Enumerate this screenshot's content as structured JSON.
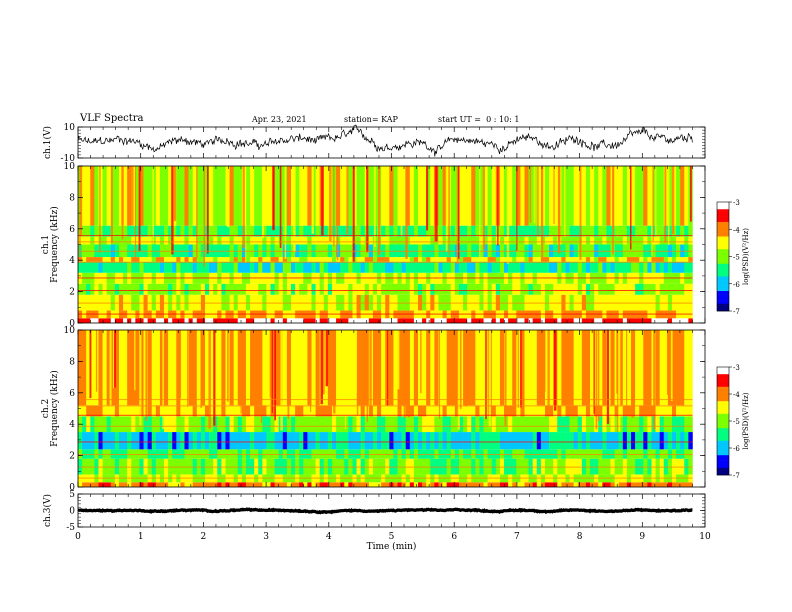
{
  "header": {
    "title": "VLF Spectra",
    "date": "Apr. 23, 2021",
    "station": "station= KAP",
    "start_ut": "start UT =  0 : 10: 1"
  },
  "chart_data": [
    {
      "type": "line",
      "id": "ch1-waveform",
      "ylabel": "ch.1(V)",
      "ylim": [
        -10,
        10
      ],
      "ytick_labels": [
        "10",
        "-10"
      ],
      "xlim": [
        0,
        10
      ],
      "x_end": 9.8,
      "series": [
        {
          "color": "#000000",
          "level": 0,
          "amplitude": 7
        }
      ]
    },
    {
      "type": "heatmap",
      "id": "ch1-spectrogram",
      "ylabel": "ch.1\nFrequency (kHz)",
      "ylim": [
        0,
        10
      ],
      "ytick_labels": [
        "0",
        "2",
        "4",
        "6",
        "8",
        "10"
      ],
      "xlim": [
        0,
        10
      ],
      "x_end": 9.8,
      "colorbar": {
        "label": "log(PSD)(V²/Hz)",
        "range": [
          -7,
          -3
        ],
        "tick_labels": [
          "-3",
          "-4",
          "-5",
          "-6",
          "-7"
        ]
      },
      "colormap": [
        "#000080",
        "#0000ff",
        "#00c8ff",
        "#00ff80",
        "#7cff00",
        "#ffff00",
        "#ff8000",
        "#ff0000",
        "#ffffff"
      ],
      "bands_khz": [
        {
          "from": 0,
          "to": 0.3,
          "log_psd": -3.3
        },
        {
          "from": 0.3,
          "to": 0.8,
          "log_psd": -4.2
        },
        {
          "from": 0.8,
          "to": 1.8,
          "log_psd": -4.6
        },
        {
          "from": 1.8,
          "to": 2.5,
          "log_psd": -4.9
        },
        {
          "from": 2.5,
          "to": 3.2,
          "log_psd": -4.7
        },
        {
          "from": 3.2,
          "to": 3.9,
          "log_psd": -5.6
        },
        {
          "from": 3.9,
          "to": 4.2,
          "log_psd": -4.5
        },
        {
          "from": 4.2,
          "to": 5.0,
          "log_psd": -5.4
        },
        {
          "from": 5.0,
          "to": 5.5,
          "log_psd": -4.8
        },
        {
          "from": 5.5,
          "to": 6.2,
          "log_psd": -5.3
        },
        {
          "from": 6.2,
          "to": 10,
          "log_psd": -4.6
        }
      ]
    },
    {
      "type": "heatmap",
      "id": "ch2-spectrogram",
      "ylabel": "ch.2\nFrequency (kHz)",
      "ylim": [
        0,
        10
      ],
      "ytick_labels": [
        "0",
        "2",
        "4",
        "6",
        "8",
        "10"
      ],
      "xlim": [
        0,
        10
      ],
      "x_end": 9.8,
      "colorbar": {
        "label": "log(PSD)(V²/Hz)",
        "range": [
          -7,
          -3
        ],
        "tick_labels": [
          "-3",
          "-4",
          "-5",
          "-6",
          "-7"
        ]
      },
      "colormap": [
        "#000080",
        "#0000ff",
        "#00c8ff",
        "#00ff80",
        "#7cff00",
        "#ffff00",
        "#ff8000",
        "#ff0000",
        "#ffffff"
      ],
      "bands_khz": [
        {
          "from": 0,
          "to": 0.3,
          "log_psd": -4.0
        },
        {
          "from": 0.3,
          "to": 0.8,
          "log_psd": -4.8
        },
        {
          "from": 0.8,
          "to": 1.8,
          "log_psd": -5.0
        },
        {
          "from": 1.8,
          "to": 2.4,
          "log_psd": -5.3
        },
        {
          "from": 2.4,
          "to": 3.5,
          "log_psd": -5.9
        },
        {
          "from": 3.5,
          "to": 4.5,
          "log_psd": -5.0
        },
        {
          "from": 4.5,
          "to": 5.2,
          "log_psd": -4.3
        },
        {
          "from": 5.2,
          "to": 10,
          "log_psd": -4.3
        }
      ]
    },
    {
      "type": "line",
      "id": "ch3-waveform",
      "ylabel": "ch.3(V)",
      "ylim": [
        -5,
        5
      ],
      "ytick_labels": [
        "5",
        "0",
        "-5"
      ],
      "xlim": [
        0,
        10
      ],
      "x_end": 9.8,
      "xlabel": "Time (min)",
      "xtick_labels": [
        "0",
        "1",
        "2",
        "3",
        "4",
        "5",
        "6",
        "7",
        "8",
        "9",
        "10"
      ],
      "series": [
        {
          "color": "#000000",
          "level": 0,
          "amplitude": 0.4
        }
      ]
    }
  ]
}
